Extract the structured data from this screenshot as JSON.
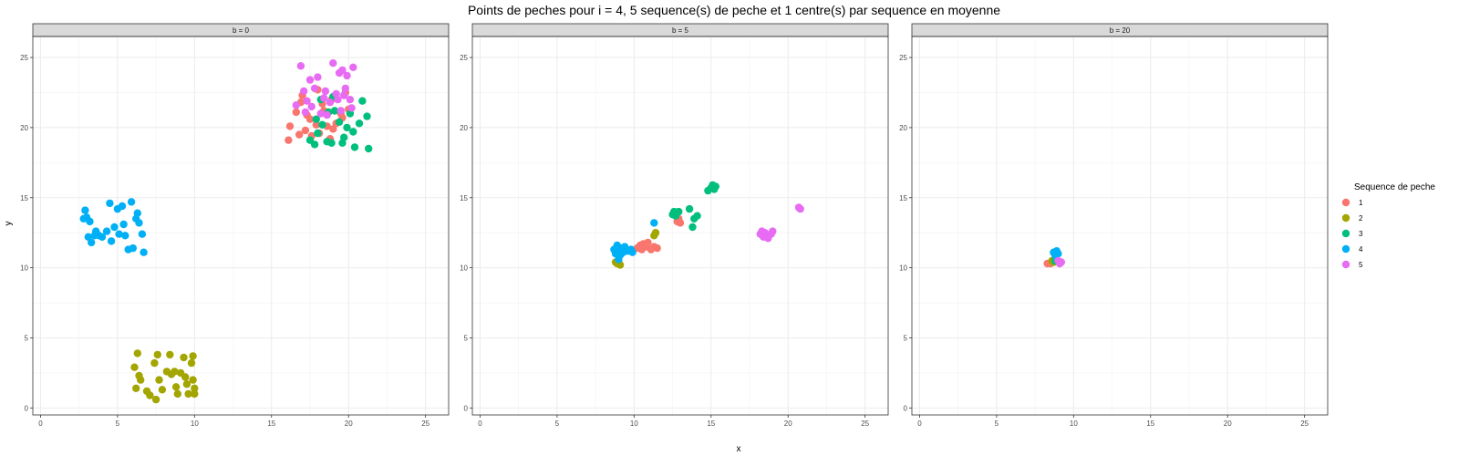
{
  "chart_data": {
    "type": "scatter",
    "title": "Points de peches pour i = 4, 5 sequence(s) de peche et 1 centre(s) par sequence en moyenne",
    "xlabel": "x",
    "ylabel": "y",
    "xlim": [
      -0.5,
      26.5
    ],
    "ylim": [
      -0.5,
      26.5
    ],
    "xticks": [
      0,
      5,
      10,
      15,
      20,
      25
    ],
    "yticks": [
      0,
      5,
      10,
      15,
      20,
      25
    ],
    "grid": true,
    "legend": {
      "title": "Sequence de peche",
      "position": "right",
      "entries": [
        "1",
        "2",
        "3",
        "4",
        "5"
      ]
    },
    "colors": {
      "1": "#F8766D",
      "2": "#A3A500",
      "3": "#00BF7D",
      "4": "#00B0F6",
      "5": "#E76BF3"
    },
    "panels": [
      {
        "label": "b = 0",
        "series": [
          {
            "name": "1",
            "points": [
              [
                16.2,
                20.1
              ],
              [
                16.6,
                21.1
              ],
              [
                16.9,
                21.8
              ],
              [
                17.2,
                19.8
              ],
              [
                17.5,
                20.6
              ],
              [
                17.9,
                20.2
              ],
              [
                18.1,
                19.6
              ],
              [
                18.3,
                21.7
              ],
              [
                18.6,
                20.1
              ],
              [
                18.9,
                22.0
              ],
              [
                19.2,
                20.3
              ],
              [
                19.5,
                21.0
              ],
              [
                19.8,
                22.5
              ],
              [
                17.0,
                22.3
              ],
              [
                18.0,
                22.7
              ],
              [
                16.8,
                19.5
              ],
              [
                16.1,
                19.1
              ],
              [
                17.6,
                19.4
              ],
              [
                18.4,
                21.2
              ],
              [
                19.0,
                19.9
              ],
              [
                19.6,
                20.7
              ],
              [
                20.0,
                21.3
              ],
              [
                17.3,
                20.9
              ],
              [
                18.8,
                19.2
              ]
            ]
          },
          {
            "name": "2",
            "points": [
              [
                6.3,
                3.9
              ],
              [
                6.1,
                2.9
              ],
              [
                6.4,
                2.3
              ],
              [
                6.2,
                1.4
              ],
              [
                6.5,
                2.0
              ],
              [
                6.9,
                1.2
              ],
              [
                7.1,
                0.9
              ],
              [
                7.5,
                0.6
              ],
              [
                7.4,
                3.2
              ],
              [
                7.6,
                3.8
              ],
              [
                7.7,
                2.0
              ],
              [
                7.9,
                1.3
              ],
              [
                8.2,
                2.6
              ],
              [
                8.4,
                3.8
              ],
              [
                8.5,
                2.4
              ],
              [
                8.8,
                1.5
              ],
              [
                8.9,
                1.0
              ],
              [
                9.1,
                2.5
              ],
              [
                9.3,
                3.6
              ],
              [
                9.4,
                2.2
              ],
              [
                9.5,
                1.7
              ],
              [
                9.6,
                1.0
              ],
              [
                9.8,
                3.2
              ],
              [
                9.9,
                3.7
              ],
              [
                9.9,
                2.0
              ],
              [
                10.0,
                1.4
              ],
              [
                10.0,
                1.0
              ],
              [
                8.7,
                2.6
              ]
            ]
          },
          {
            "name": "3",
            "points": [
              [
                17.5,
                19.1
              ],
              [
                17.8,
                18.8
              ],
              [
                18.0,
                19.6
              ],
              [
                18.3,
                20.2
              ],
              [
                18.6,
                19.0
              ],
              [
                18.9,
                18.9
              ],
              [
                19.1,
                21.2
              ],
              [
                19.4,
                20.4
              ],
              [
                19.6,
                18.9
              ],
              [
                19.9,
                20.0
              ],
              [
                20.1,
                21.0
              ],
              [
                20.4,
                18.6
              ],
              [
                20.7,
                20.3
              ],
              [
                20.9,
                21.9
              ],
              [
                21.2,
                20.8
              ],
              [
                21.3,
                18.5
              ],
              [
                18.2,
                22.0
              ],
              [
                19.0,
                22.2
              ],
              [
                20.3,
                19.7
              ],
              [
                18.7,
                21.1
              ],
              [
                17.9,
                20.6
              ],
              [
                19.7,
                19.3
              ]
            ]
          },
          {
            "name": "4",
            "points": [
              [
                2.9,
                14.1
              ],
              [
                3.0,
                13.6
              ],
              [
                3.2,
                13.3
              ],
              [
                3.1,
                12.2
              ],
              [
                3.3,
                11.8
              ],
              [
                3.6,
                12.6
              ],
              [
                3.8,
                12.3
              ],
              [
                4.0,
                12.2
              ],
              [
                4.3,
                12.6
              ],
              [
                4.5,
                14.6
              ],
              [
                4.6,
                11.9
              ],
              [
                4.8,
                12.9
              ],
              [
                5.0,
                14.2
              ],
              [
                5.1,
                12.4
              ],
              [
                5.3,
                14.4
              ],
              [
                5.5,
                12.3
              ],
              [
                5.7,
                11.3
              ],
              [
                5.9,
                14.7
              ],
              [
                6.0,
                11.4
              ],
              [
                6.2,
                13.5
              ],
              [
                6.3,
                13.9
              ],
              [
                6.4,
                13.2
              ],
              [
                6.6,
                12.4
              ],
              [
                6.7,
                11.1
              ],
              [
                5.4,
                13.1
              ],
              [
                2.8,
                13.5
              ],
              [
                3.5,
                12.3
              ]
            ]
          },
          {
            "name": "5",
            "points": [
              [
                16.9,
                24.4
              ],
              [
                17.1,
                22.6
              ],
              [
                17.3,
                21.9
              ],
              [
                17.5,
                23.4
              ],
              [
                17.6,
                21.5
              ],
              [
                17.8,
                22.8
              ],
              [
                18.0,
                23.6
              ],
              [
                18.2,
                21.0
              ],
              [
                18.4,
                22.1
              ],
              [
                18.6,
                20.9
              ],
              [
                18.8,
                21.8
              ],
              [
                19.0,
                24.6
              ],
              [
                19.2,
                22.4
              ],
              [
                19.3,
                22.0
              ],
              [
                19.4,
                23.9
              ],
              [
                19.6,
                24.1
              ],
              [
                19.8,
                22.8
              ],
              [
                19.9,
                23.7
              ],
              [
                20.1,
                22.0
              ],
              [
                20.2,
                21.4
              ],
              [
                20.3,
                24.3
              ],
              [
                19.5,
                21.2
              ],
              [
                18.5,
                22.6
              ],
              [
                17.2,
                21.1
              ],
              [
                16.6,
                21.6
              ],
              [
                19.7,
                22.3
              ]
            ]
          }
        ]
      },
      {
        "label": "b = 5",
        "series": [
          {
            "name": "1",
            "points": [
              [
                10.2,
                11.4
              ],
              [
                10.4,
                11.6
              ],
              [
                10.5,
                11.3
              ],
              [
                10.6,
                11.7
              ],
              [
                10.8,
                11.5
              ],
              [
                10.9,
                11.8
              ],
              [
                11.1,
                11.3
              ],
              [
                11.3,
                11.5
              ],
              [
                11.5,
                11.4
              ],
              [
                12.8,
                13.3
              ],
              [
                12.9,
                13.5
              ],
              [
                13.0,
                13.2
              ]
            ]
          },
          {
            "name": "2",
            "points": [
              [
                8.9,
                10.3
              ],
              [
                9.0,
                10.5
              ],
              [
                9.1,
                10.2
              ],
              [
                8.8,
                10.4
              ],
              [
                11.3,
                12.3
              ],
              [
                11.4,
                12.5
              ]
            ]
          },
          {
            "name": "3",
            "points": [
              [
                12.5,
                13.8
              ],
              [
                12.7,
                13.7
              ],
              [
                12.9,
                14.0
              ],
              [
                13.6,
                14.2
              ],
              [
                13.8,
                12.9
              ],
              [
                13.9,
                13.5
              ],
              [
                14.1,
                13.7
              ],
              [
                14.8,
                15.5
              ],
              [
                15.0,
                15.7
              ],
              [
                15.1,
                15.9
              ],
              [
                15.2,
                15.6
              ],
              [
                15.3,
                15.8
              ],
              [
                12.6,
                14.0
              ]
            ]
          },
          {
            "name": "4",
            "points": [
              [
                8.8,
                11.0
              ],
              [
                8.9,
                11.6
              ],
              [
                9.0,
                11.2
              ],
              [
                9.1,
                10.9
              ],
              [
                9.2,
                11.4
              ],
              [
                9.3,
                11.1
              ],
              [
                9.4,
                11.5
              ],
              [
                9.6,
                11.2
              ],
              [
                9.8,
                11.3
              ],
              [
                9.9,
                11.1
              ],
              [
                11.3,
                13.2
              ],
              [
                8.7,
                11.3
              ],
              [
                9.0,
                10.6
              ]
            ]
          },
          {
            "name": "5",
            "points": [
              [
                18.2,
                12.4
              ],
              [
                18.3,
                12.6
              ],
              [
                18.4,
                12.2
              ],
              [
                18.5,
                12.5
              ],
              [
                18.6,
                12.3
              ],
              [
                18.7,
                12.1
              ],
              [
                18.9,
                12.4
              ],
              [
                19.0,
                12.6
              ],
              [
                20.7,
                14.3
              ],
              [
                20.8,
                14.2
              ]
            ]
          }
        ]
      },
      {
        "label": "b = 20",
        "series": [
          {
            "name": "1",
            "points": [
              [
                8.3,
                10.3
              ],
              [
                8.5,
                10.3
              ],
              [
                8.6,
                10.4
              ]
            ]
          },
          {
            "name": "2",
            "points": [
              [
                8.6,
                10.5
              ],
              [
                8.7,
                10.4
              ]
            ]
          },
          {
            "name": "3",
            "points": [
              [
                8.8,
                10.5
              ]
            ]
          },
          {
            "name": "4",
            "points": [
              [
                8.7,
                11.1
              ],
              [
                8.8,
                10.9
              ],
              [
                8.9,
                11.2
              ],
              [
                9.0,
                11.0
              ]
            ]
          },
          {
            "name": "5",
            "points": [
              [
                9.0,
                10.5
              ],
              [
                9.1,
                10.3
              ],
              [
                9.2,
                10.4
              ]
            ]
          }
        ]
      }
    ]
  }
}
